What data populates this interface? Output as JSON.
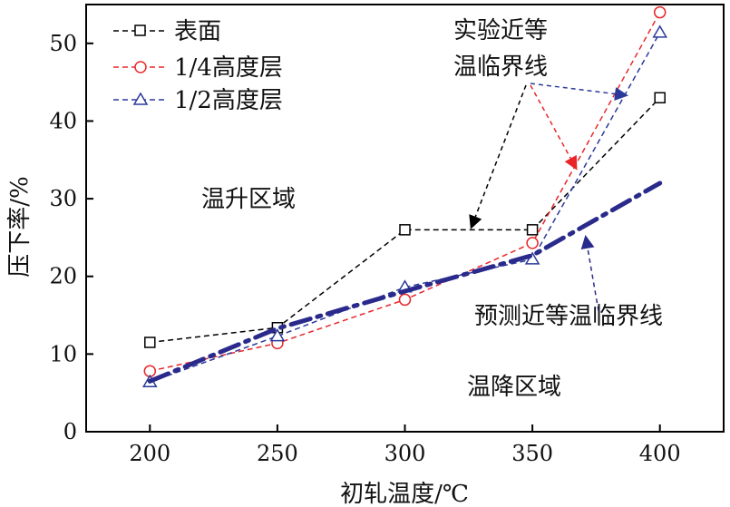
{
  "chart_data": {
    "type": "line",
    "title": "",
    "xlabel": "初轧温度/℃",
    "ylabel": "压下率/%",
    "xlim": [
      175,
      425
    ],
    "ylim": [
      0,
      55
    ],
    "x": [
      200,
      250,
      300,
      350,
      400
    ],
    "xticks": [
      "200",
      "250",
      "300",
      "350",
      "400"
    ],
    "yticks": [
      "0",
      "10",
      "20",
      "30",
      "40",
      "50"
    ],
    "yticks_values": [
      0,
      10,
      20,
      30,
      40,
      50
    ],
    "grid": false,
    "legend_position": "top-left",
    "series": [
      {
        "name": "表面",
        "values": [
          11.5,
          13.4,
          26.0,
          26.0,
          43.0
        ],
        "color": "#000000",
        "marker": "square",
        "style": "dashed"
      },
      {
        "name": "1/4高度层",
        "values": [
          7.8,
          11.4,
          17.0,
          24.3,
          54.0
        ],
        "color": "#e8262a",
        "marker": "circle",
        "style": "dashed"
      },
      {
        "name": "1/2高度层",
        "values": [
          6.4,
          12.3,
          18.6,
          22.2,
          51.4
        ],
        "color": "#2b3a9a",
        "marker": "triangle",
        "style": "dashed"
      },
      {
        "name": "预测近等温临界线",
        "values": [
          6.5,
          13.3,
          18.1,
          22.7,
          32.0
        ],
        "color": "#2a2a8c",
        "marker": "none",
        "style": "dashdot"
      }
    ],
    "annotations": {
      "experimental_line_1": "实验近等",
      "experimental_line_2": "温临界线",
      "predicted": "预测近等温临界线",
      "heating_zone": "温升区域",
      "cooling_zone": "温降区域"
    }
  }
}
